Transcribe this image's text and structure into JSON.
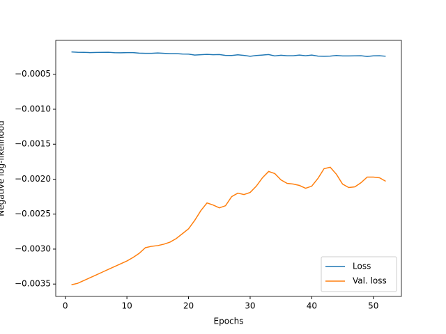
{
  "chart_data": {
    "type": "line",
    "xlabel": "Epochs",
    "ylabel": "Negative log-likelihood",
    "x": [
      1,
      2,
      3,
      4,
      5,
      6,
      7,
      8,
      9,
      10,
      11,
      12,
      13,
      14,
      15,
      16,
      17,
      18,
      19,
      20,
      21,
      22,
      23,
      24,
      25,
      26,
      27,
      28,
      29,
      30,
      31,
      32,
      33,
      34,
      35,
      36,
      37,
      38,
      39,
      40,
      41,
      42,
      43,
      44,
      45,
      46,
      47,
      48,
      49,
      50,
      51,
      52
    ],
    "series": [
      {
        "name": "Loss",
        "color": "#1f77b4",
        "values": [
          -0.00018,
          -0.000185,
          -0.000187,
          -0.00019,
          -0.000188,
          -0.000187,
          -0.000185,
          -0.000192,
          -0.000193,
          -0.00019,
          -0.00019,
          -0.000198,
          -0.0002,
          -0.0002,
          -0.000195,
          -0.0002,
          -0.000205,
          -0.000205,
          -0.00021,
          -0.000212,
          -0.000225,
          -0.00022,
          -0.000215,
          -0.00022,
          -0.000218,
          -0.00023,
          -0.000232,
          -0.000222,
          -0.00023,
          -0.000243,
          -0.000232,
          -0.000225,
          -0.000218,
          -0.000238,
          -0.000228,
          -0.000235,
          -0.000235,
          -0.000225,
          -0.000235,
          -0.000225,
          -0.00024,
          -0.000243,
          -0.00024,
          -0.000232,
          -0.000238,
          -0.000238,
          -0.000236,
          -0.000235,
          -0.000245,
          -0.000237,
          -0.000235,
          -0.000242
        ]
      },
      {
        "name": "Val. loss",
        "color": "#ff7f0e",
        "values": [
          -0.00351,
          -0.00349,
          -0.00345,
          -0.00341,
          -0.00337,
          -0.00333,
          -0.00329,
          -0.00325,
          -0.00321,
          -0.00317,
          -0.00312,
          -0.00306,
          -0.00298,
          -0.00296,
          -0.00295,
          -0.00293,
          -0.0029,
          -0.00285,
          -0.00278,
          -0.00271,
          -0.00259,
          -0.00245,
          -0.00234,
          -0.00237,
          -0.00241,
          -0.00238,
          -0.00225,
          -0.0022,
          -0.00222,
          -0.00219,
          -0.0021,
          -0.00198,
          -0.00189,
          -0.00192,
          -0.00201,
          -0.00206,
          -0.00207,
          -0.00209,
          -0.00213,
          -0.0021,
          -0.00199,
          -0.00185,
          -0.00183,
          -0.00193,
          -0.00207,
          -0.00212,
          -0.00211,
          -0.00205,
          -0.00197,
          -0.00197,
          -0.00198,
          -0.00203
        ]
      }
    ],
    "xlim": [
      -1.55,
      54.55
    ],
    "ylim": [
      -0.003677,
      -1.5e-05
    ],
    "xticks": [
      0,
      10,
      20,
      30,
      40,
      50
    ],
    "yticks": [
      {
        "value": -0.0035,
        "label": "−0.0035"
      },
      {
        "value": -0.003,
        "label": "−0.0030"
      },
      {
        "value": -0.0025,
        "label": "−0.0025"
      },
      {
        "value": -0.002,
        "label": "−0.0020"
      },
      {
        "value": -0.0015,
        "label": "−0.0015"
      },
      {
        "value": -0.001,
        "label": "−0.0010"
      },
      {
        "value": -0.0005,
        "label": "−0.0005"
      }
    ],
    "legend": "lower right"
  }
}
